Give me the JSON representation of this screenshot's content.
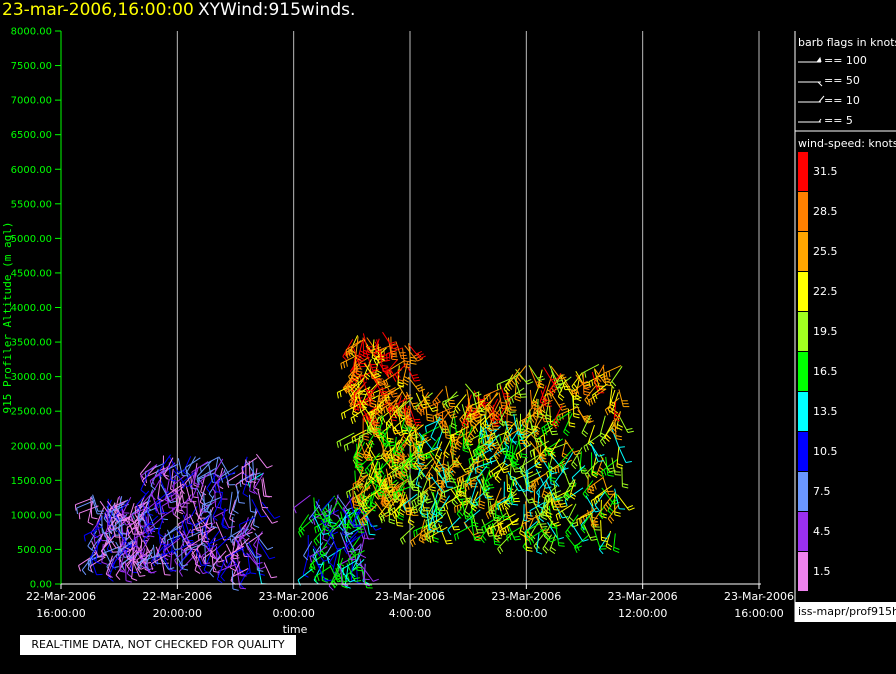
{
  "title": {
    "date": "23-mar-2006,16:00:00",
    "name": "XYWind:915winds."
  },
  "qc_notice": "REAL-TIME DATA, NOT CHECKED FOR QUALITY",
  "footer_tag": "iss-mapr/prof915h",
  "legend_flags": {
    "title": "barb flags in knots",
    "items": [
      "== 100",
      "== 50",
      "== 10",
      "== 5"
    ]
  },
  "legend_speed": {
    "title": "wind-speed: knots",
    "labels": [
      "31.5",
      "28.5",
      "25.5",
      "22.5",
      "19.5",
      "16.5",
      "13.5",
      "10.5",
      "7.5",
      "4.5",
      "1.5"
    ],
    "colors": [
      "#ff0000",
      "#ff8000",
      "#ffa500",
      "#ffff00",
      "#a0ff20",
      "#00ff00",
      "#00ffff",
      "#0000ff",
      "#6a96ff",
      "#9a30f0",
      "#ee82ee"
    ]
  },
  "colors": {
    "axis": "#00ff00",
    "grid": "#bbbbbb",
    "title_date": "#ffff00"
  },
  "chart_data": {
    "type": "scatter",
    "title": "",
    "xlabel": "time",
    "ylabel": "915 Profiler Altitude (m agl)",
    "xlim": [
      "22-Mar-2006 16:00:00",
      "23-Mar-2006 16:00:00"
    ],
    "ylim": [
      0,
      8000
    ],
    "grid": true,
    "y_ticks": [
      "0.00",
      "500.00",
      "1000.00",
      "1500.00",
      "2000.00",
      "2500.00",
      "3000.00",
      "3500.00",
      "4000.00",
      "4500.00",
      "5000.00",
      "5500.00",
      "6000.00",
      "6500.00",
      "7000.00",
      "7500.00",
      "8000.00"
    ],
    "x_ticks": [
      {
        "date": "22-Mar-2006",
        "time": "16:00:00"
      },
      {
        "date": "22-Mar-2006",
        "time": "20:00:00"
      },
      {
        "date": "23-Mar-2006",
        "time": "0:00:00"
      },
      {
        "date": "23-Mar-2006",
        "time": "4:00:00"
      },
      {
        "date": "23-Mar-2006",
        "time": "8:00:00"
      },
      {
        "date": "23-Mar-2006",
        "time": "12:00:00"
      },
      {
        "date": "23-Mar-2006",
        "time": "16:00:00"
      }
    ],
    "x_tick_hours": [
      0,
      4,
      8,
      12,
      16,
      20,
      24
    ],
    "clusters": [
      {
        "t0": 1.0,
        "t1": 3.0,
        "z0": 300,
        "z1": 1300,
        "n": 140,
        "dominant_speed": 4
      },
      {
        "t0": 3.0,
        "t1": 5.5,
        "z0": 400,
        "z1": 1900,
        "n": 180,
        "dominant_speed": 5
      },
      {
        "t0": 5.5,
        "t1": 7.0,
        "z0": 150,
        "z1": 1900,
        "n": 90,
        "dominant_speed": 6
      },
      {
        "t0": 8.5,
        "t1": 10.5,
        "z0": 200,
        "z1": 1300,
        "n": 110,
        "dominant_speed": 11
      },
      {
        "t0": 10.0,
        "t1": 12.0,
        "z0": 1100,
        "z1": 3650,
        "n": 260,
        "dominant_speed": 22
      },
      {
        "t0": 12.0,
        "t1": 15.5,
        "z0": 800,
        "z1": 2900,
        "n": 280,
        "dominant_speed": 20
      },
      {
        "t0": 15.5,
        "t1": 19.3,
        "z0": 700,
        "z1": 3200,
        "n": 260,
        "dominant_speed": 19
      }
    ]
  }
}
